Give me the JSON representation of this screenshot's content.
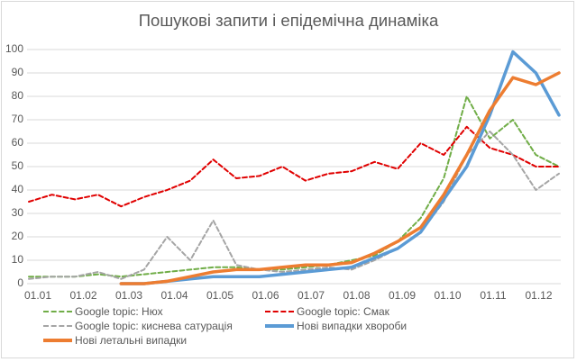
{
  "chart": {
    "title": "Пошукові запити і епідемічна динаміка",
    "y_ticks": [
      "0",
      "10",
      "20",
      "30",
      "40",
      "50",
      "60",
      "70",
      "80",
      "90",
      "100"
    ],
    "x_ticks": [
      "01.01",
      "01.02",
      "01.03",
      "01.04",
      "01.05",
      "01.06",
      "01.07",
      "01.08",
      "01.09",
      "01.10",
      "01.11",
      "01.12"
    ],
    "legend": [
      {
        "label": "Google topic: Нюх",
        "color": "#70ad47",
        "style": "dashed"
      },
      {
        "label": "Google topic: Смак",
        "color": "#e00000",
        "style": "dashed"
      },
      {
        "label": "Google topic: киснева сатурація",
        "color": "#a5a5a5",
        "style": "dashed"
      },
      {
        "label": "Нові випадки хвороби",
        "color": "#5b9bd5",
        "style": "solid"
      },
      {
        "label": "Нові летальні випадки",
        "color": "#ed7d31",
        "style": "solid"
      }
    ]
  },
  "chart_data": {
    "type": "line",
    "title": "Пошукові запити і епідемічна динаміка",
    "xlabel": "",
    "ylabel": "",
    "ylim": [
      0,
      100
    ],
    "grid": true,
    "legend_position": "bottom",
    "x": [
      "01.01",
      "01.01+",
      "01.02",
      "01.02+",
      "01.03",
      "01.03+",
      "01.04",
      "01.04+",
      "01.05",
      "01.05+",
      "01.06",
      "01.06+",
      "01.07",
      "01.07+",
      "01.08",
      "01.08+",
      "01.09",
      "01.09+",
      "01.10",
      "01.10+",
      "01.11",
      "01.11+",
      "01.12",
      "01.12+"
    ],
    "series": [
      {
        "name": "Google topic: Нюх",
        "values": [
          3,
          3,
          3,
          4,
          3,
          4,
          5,
          6,
          7,
          7,
          6,
          6,
          7,
          8,
          10,
          12,
          18,
          28,
          45,
          80,
          62,
          70,
          55,
          50
        ]
      },
      {
        "name": "Google topic: Смак",
        "values": [
          35,
          38,
          36,
          38,
          33,
          37,
          40,
          44,
          53,
          45,
          46,
          50,
          44,
          47,
          48,
          52,
          49,
          60,
          55,
          67,
          58,
          55,
          50,
          50
        ]
      },
      {
        "name": "Google topic: киснева сатурація",
        "values": [
          2,
          3,
          3,
          5,
          2,
          6,
          20,
          10,
          27,
          8,
          6,
          5,
          6,
          7,
          6,
          10,
          15,
          22,
          35,
          55,
          65,
          55,
          40,
          47
        ]
      },
      {
        "name": "Нові випадки хвороби",
        "values": [
          null,
          null,
          null,
          null,
          0,
          0,
          1,
          2,
          3,
          3,
          3,
          4,
          5,
          6,
          7,
          11,
          15,
          22,
          36,
          50,
          72,
          99,
          90,
          72
        ]
      },
      {
        "name": "Нові летальні випадки",
        "values": [
          null,
          null,
          null,
          null,
          0,
          0,
          1,
          3,
          5,
          6,
          6,
          7,
          8,
          8,
          9,
          13,
          18,
          24,
          38,
          55,
          74,
          88,
          85,
          90
        ]
      }
    ]
  }
}
